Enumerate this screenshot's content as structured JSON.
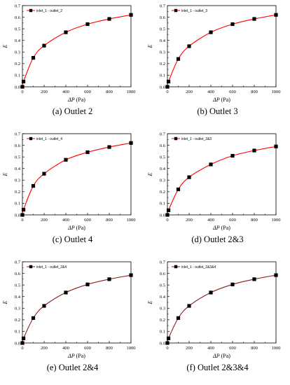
{
  "colors": {
    "curve_panels_1_to_4": "#ff0000",
    "curve_panels_5_6": "#8b1a1a",
    "marker": "#000000",
    "axis": "#000000"
  },
  "shared_axes": {
    "x_ticks": [
      "0",
      "200",
      "400",
      "600",
      "800",
      "1000"
    ],
    "y_ticks": [
      "0.0",
      "0.1",
      "0.2",
      "0.3",
      "0.4",
      "0.5",
      "0.6",
      "0.7"
    ],
    "xlabel_symbol": "ΔP",
    "xlabel_unit": "(Pa)",
    "ylabel": "E"
  },
  "panels": [
    {
      "caption": "(a) Outlet 2",
      "legend": "inlet_1 - outlet_2"
    },
    {
      "caption": "(b) Outlet 3",
      "legend": "inlet_1 - outlet_3"
    },
    {
      "caption": "(c) Outlet 4",
      "legend": "inlet_1 - outlet_4"
    },
    {
      "caption": "(d) Outlet 2&3",
      "legend": "inlet_1 - outlet_2&3"
    },
    {
      "caption": "(e) Outlet 2&4",
      "legend": "inlet_1 - outlet_2&4"
    },
    {
      "caption": "(f) Outlet 2&3&4",
      "legend": "inlet_1 - outlet_2&3&4"
    }
  ],
  "chart_data": [
    {
      "type": "scatter",
      "title": "(a) Outlet 2",
      "xlabel": "ΔP (Pa)",
      "ylabel": "E",
      "xlim": [
        0,
        1000
      ],
      "ylim": [
        0,
        0.7
      ],
      "legend_position": "top-left",
      "fit_curve": true,
      "curve_color": "#ff0000",
      "series": [
        {
          "name": "inlet_1 - outlet_2",
          "x": [
            0,
            10,
            100,
            200,
            400,
            600,
            800,
            1000
          ],
          "y": [
            0.0,
            0.045,
            0.25,
            0.355,
            0.47,
            0.54,
            0.585,
            0.62
          ]
        }
      ]
    },
    {
      "type": "scatter",
      "title": "(b) Outlet 3",
      "xlabel": "ΔP (Pa)",
      "ylabel": "E",
      "xlim": [
        0,
        1000
      ],
      "ylim": [
        0,
        0.7
      ],
      "legend_position": "top-left",
      "fit_curve": true,
      "curve_color": "#ff0000",
      "series": [
        {
          "name": "inlet_1 - outlet_3",
          "x": [
            0,
            10,
            100,
            200,
            400,
            600,
            800,
            1000
          ],
          "y": [
            0.0,
            0.045,
            0.24,
            0.35,
            0.47,
            0.54,
            0.585,
            0.62
          ]
        }
      ]
    },
    {
      "type": "scatter",
      "title": "(c) Outlet 4",
      "xlabel": "ΔP (Pa)",
      "ylabel": "E",
      "xlim": [
        0,
        1000
      ],
      "ylim": [
        0,
        0.7
      ],
      "legend_position": "top-left",
      "fit_curve": true,
      "curve_color": "#ff0000",
      "series": [
        {
          "name": "inlet_1 - outlet_4",
          "x": [
            0,
            10,
            100,
            200,
            400,
            600,
            800,
            1000
          ],
          "y": [
            0.0,
            0.045,
            0.25,
            0.355,
            0.475,
            0.54,
            0.585,
            0.62
          ]
        }
      ]
    },
    {
      "type": "scatter",
      "title": "(d) Outlet 2&3",
      "xlabel": "ΔP (Pa)",
      "ylabel": "E",
      "xlim": [
        0,
        1000
      ],
      "ylim": [
        0,
        0.7
      ],
      "legend_position": "top-left",
      "fit_curve": true,
      "curve_color": "#ff0000",
      "series": [
        {
          "name": "inlet_1 - outlet_2&3",
          "x": [
            0,
            10,
            100,
            200,
            400,
            600,
            800,
            1000
          ],
          "y": [
            0.0,
            0.04,
            0.22,
            0.325,
            0.435,
            0.51,
            0.555,
            0.59
          ]
        }
      ]
    },
    {
      "type": "scatter",
      "title": "(e) Outlet 2&4",
      "xlabel": "ΔP (Pa)",
      "ylabel": "E",
      "xlim": [
        0,
        1000
      ],
      "ylim": [
        0,
        0.7
      ],
      "legend_position": "top-left",
      "fit_curve": true,
      "curve_color": "#8b1a1a",
      "series": [
        {
          "name": "inlet_1 - outlet_2&4",
          "x": [
            0,
            10,
            100,
            200,
            400,
            600,
            800,
            1000
          ],
          "y": [
            0.0,
            0.04,
            0.215,
            0.32,
            0.435,
            0.505,
            0.55,
            0.585
          ]
        }
      ]
    },
    {
      "type": "scatter",
      "title": "(f) Outlet 2&3&4",
      "xlabel": "ΔP (Pa)",
      "ylabel": "E",
      "xlim": [
        0,
        1000
      ],
      "ylim": [
        0,
        0.7
      ],
      "legend_position": "top-left",
      "fit_curve": true,
      "curve_color": "#8b1a1a",
      "series": [
        {
          "name": "inlet_1 - outlet_2&3&4",
          "x": [
            0,
            10,
            100,
            200,
            400,
            600,
            800,
            1000
          ],
          "y": [
            0.0,
            0.04,
            0.215,
            0.32,
            0.435,
            0.505,
            0.55,
            0.585
          ]
        }
      ]
    }
  ]
}
